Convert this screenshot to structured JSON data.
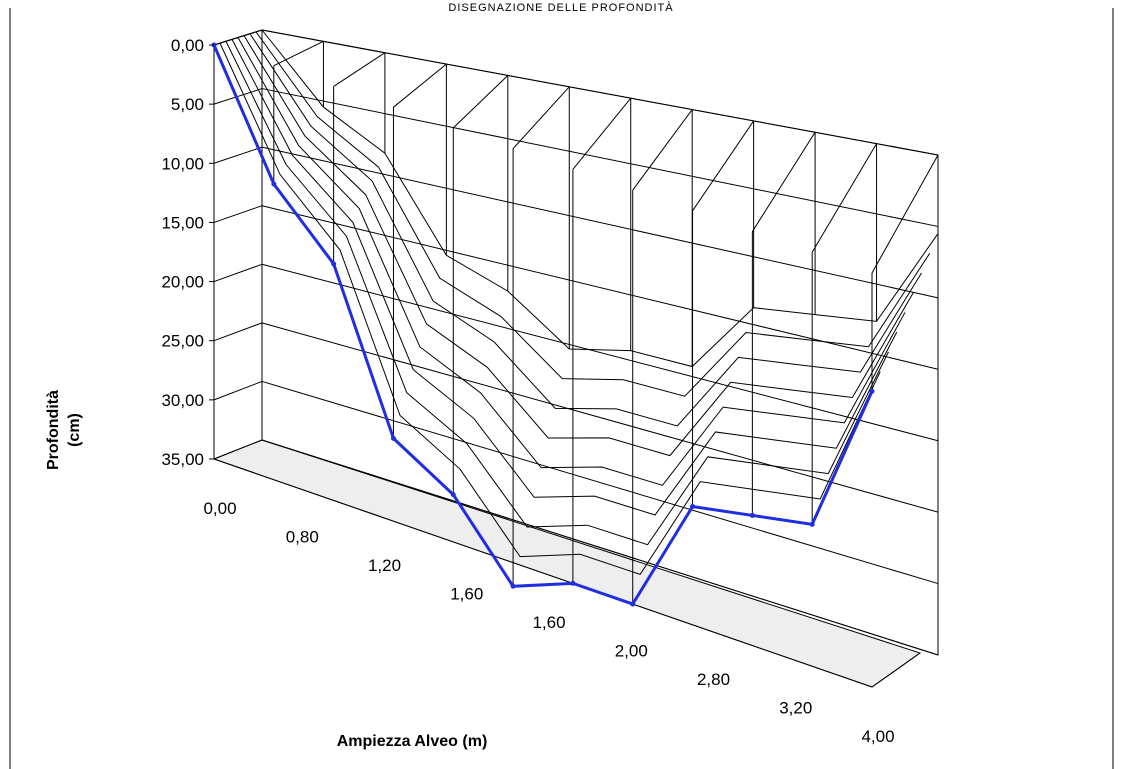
{
  "header": {
    "title": "DISEGNAZIONE DELLE PROFONDITÀ"
  },
  "colors": {
    "profile": "#1f2fe0",
    "grid": "#000000",
    "floor": "#eeeeee"
  },
  "chart_data": {
    "type": "area",
    "subtype": "3d-surface-wireframe",
    "title": "DISEGNAZIONE DELLE PROFONDITÀ",
    "xlabel": "Ampiezza Alveo (m)",
    "ylabel": "Profondità\n(cm)",
    "ylabel_lines": [
      "Profondità",
      "(cm)"
    ],
    "y_ticks": [
      "0,00",
      "5,00",
      "10,00",
      "15,00",
      "20,00",
      "25,00",
      "30,00",
      "35,00"
    ],
    "ylim": [
      0,
      35
    ],
    "y_inverted": true,
    "x_tick_labels": [
      "0,00",
      "0,80",
      "1,20",
      "1,60",
      "1,60",
      "2,00",
      "2,80",
      "3,20",
      "4,00"
    ],
    "grid": true,
    "legend": "none",
    "series": [
      {
        "values": [
          0.0,
          10.0,
          15.0,
          28.0,
          31.0,
          37.0,
          35.0,
          35.0,
          25.0,
          24.0,
          23.0,
          10.0
        ]
      }
    ]
  }
}
